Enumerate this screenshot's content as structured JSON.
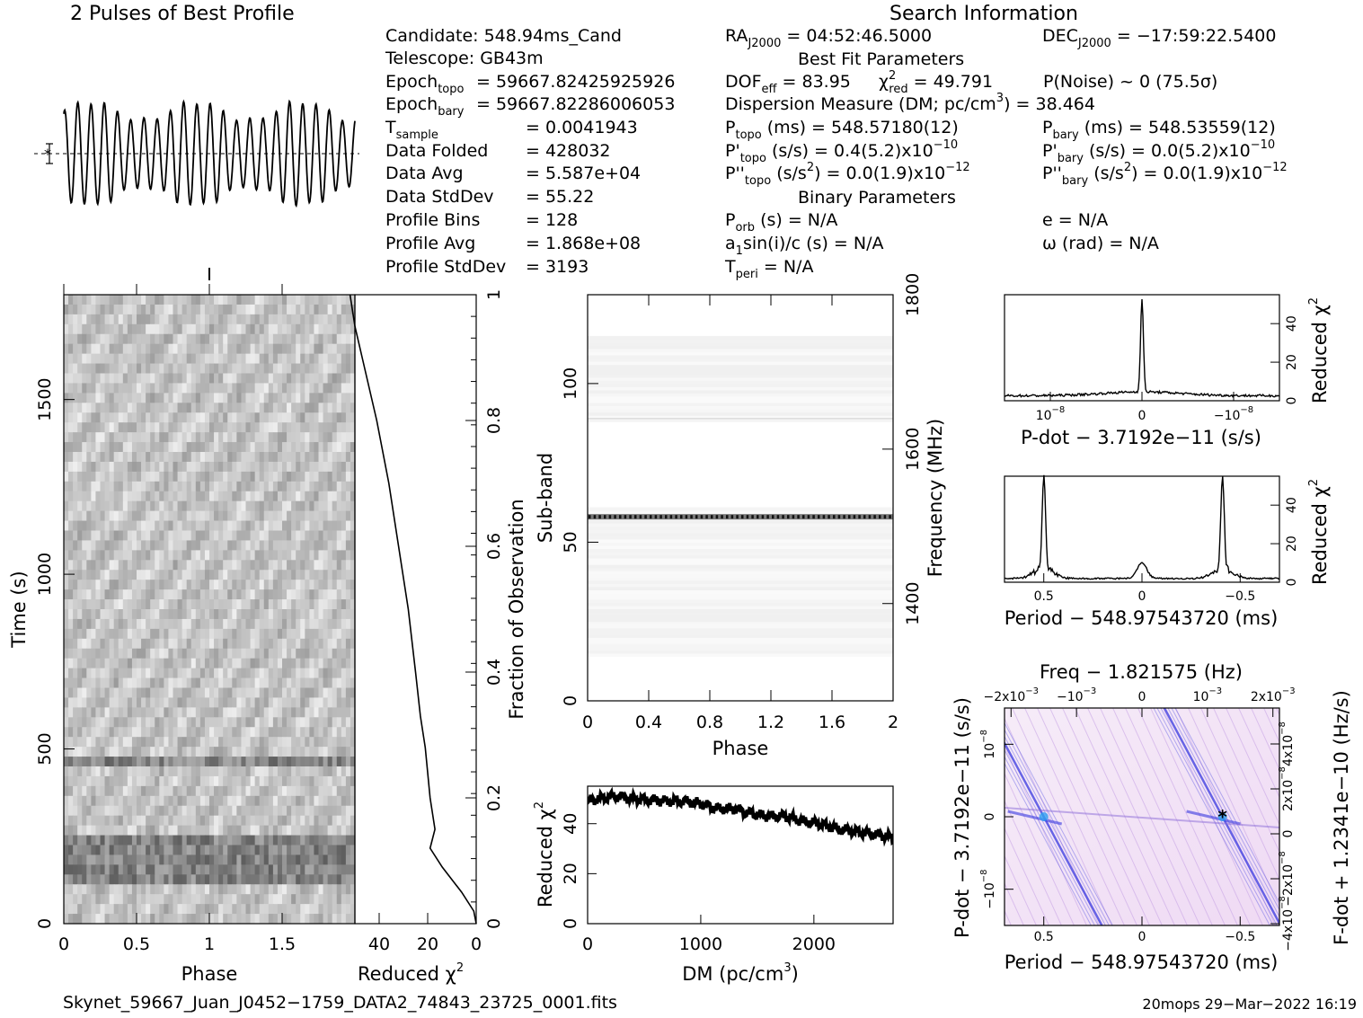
{
  "header": {
    "profile_title": "2 Pulses of Best Profile",
    "search_title": "Search Information",
    "best_fit_title": "Best Fit Parameters",
    "binary_title": "Binary Parameters"
  },
  "info": {
    "candidate": "Candidate:  548.94ms_Cand",
    "telescope": "Telescope:  GB43m",
    "epoch_topo_label": "Epoch",
    "epoch_topo_sub": "topo",
    "epoch_topo_val": "= 59667.82425925926",
    "epoch_bary_label": "Epoch",
    "epoch_bary_sub": "bary",
    "epoch_bary_val": "= 59667.82286006053",
    "tsample_label": "T",
    "tsample_sub": "sample",
    "tsample_val": "=   0.0041943",
    "data_folded_label": "Data Folded",
    "data_folded_val": "=   428032",
    "data_avg_label": "Data Avg",
    "data_avg_val": "=   5.587e+04",
    "data_std_label": "Data StdDev",
    "data_std_val": "=   55.22",
    "prof_bins_label": "Profile Bins",
    "prof_bins_val": "=   128",
    "prof_avg_label": "Profile Avg",
    "prof_avg_val": "=   1.868e+08",
    "prof_std_label": "Profile StdDev",
    "prof_std_val": "=   3193"
  },
  "search": {
    "ra_label": "RA",
    "ra_sub": "J2000",
    "ra_val": " = 04:52:46.5000",
    "dec_label": "DEC",
    "dec_sub": "J2000",
    "dec_val": " = −17:59:22.5400",
    "dof_label": "DOF",
    "dof_sub": "eff",
    "dof_val": " = 83.95",
    "chi_label": "χ",
    "chi_sup": "2",
    "chi_sub": "red",
    "chi_val": " = 49.791",
    "pnoise": "P(Noise) ~ 0    (75.5σ)",
    "dm_line": "Dispersion Measure (DM; pc/cm",
    "dm_sup": "3",
    "dm_val": ") = 38.464",
    "ptopo_label": "P",
    "ptopo_sub": "topo",
    "ptopo_val": " (ms) =  548.57180(12)",
    "pbary_label": "P",
    "pbary_sub": "bary",
    "pbary_val": " (ms) =  548.53559(12)",
    "pdtopo_label": "P'",
    "pdtopo_sub": "topo",
    "pdtopo_val": " (s/s) =  0.4(5.2)x10",
    "pdtopo_exp": "−10",
    "pdbary_label": "P'",
    "pdbary_sub": "bary",
    "pdbary_val": " (s/s) = 0.0(5.2)x10",
    "pdbary_exp": "−10",
    "pddtopo_label": "P''",
    "pddtopo_sub": "topo",
    "pddtopo_val": " (s/s",
    "pddtopo_sup": "2",
    "pddtopo_val2": ") = 0.0(1.9)x10",
    "pddtopo_exp": "−12",
    "pddbary_label": "P''",
    "pddbary_sub": "bary",
    "pddbary_val": " (s/s",
    "pddbary_sup": "2",
    "pddbary_val2": ") = 0.0(1.9)x10",
    "pddbary_exp": "−12",
    "porb_label": "P",
    "porb_sub": "orb",
    "porb_val": " (s) = N/A",
    "ecc": "e = N/A",
    "a1_label": "a",
    "a1_sub": "1",
    "a1_val": "sin(i)/c (s) = N/A",
    "omega": "ω (rad) = N/A",
    "tperi_label": "T",
    "tperi_sub": "peri",
    "tperi_val": " = N/A"
  },
  "footer": {
    "filename": "Skynet_59667_Juan_J0452−1759_DATA2_74843_23725_0001.fits",
    "stamp": "20mops 29−Mar−2022 16:19"
  },
  "colors": {
    "ink": "#000000",
    "pdot_map_bg": "#f3e3f7",
    "pdot_map_ridge": "#3838e0",
    "pdot_map_peak": "#30a0f0"
  },
  "chart_data": [
    {
      "id": "profile",
      "type": "line",
      "title": "2 Pulses of Best Profile",
      "x_range": [
        0,
        2
      ],
      "pulses_shown": 2,
      "oscillations_per_pulse": 11
    },
    {
      "id": "time_phase",
      "type": "heatmap",
      "xlabel": "Phase",
      "ylabel": "Time (s)",
      "xlim": [
        0,
        2
      ],
      "ylim": [
        0,
        1800
      ],
      "x_ticks": [
        "0",
        "0.5",
        "1",
        "1.5"
      ],
      "x_tick_values": [
        0,
        0.5,
        1,
        1.5
      ],
      "y_ticks": [
        "0",
        "500",
        "1000",
        "1500"
      ],
      "y_tick_values": [
        0,
        500,
        1000,
        1500
      ],
      "dark_band_times": [
        [
          100,
          260
        ],
        [
          460,
          490
        ]
      ]
    },
    {
      "id": "time_chi",
      "type": "line",
      "xlabel": "Reduced χ",
      "xlabel_sup": "2",
      "ylabel_right": "Fraction of Observation",
      "xlim": [
        50,
        0
      ],
      "ylim": [
        0,
        1
      ],
      "x_ticks": [
        "40",
        "20",
        "0"
      ],
      "x_tick_values": [
        40,
        20,
        0
      ],
      "y_ticks": [
        "0",
        "0.2",
        "0.4",
        "0.6",
        "0.8",
        "1"
      ],
      "y_tick_values": [
        0,
        0.2,
        0.4,
        0.6,
        0.8,
        1
      ],
      "fraction": [
        0,
        0.02,
        0.05,
        0.09,
        0.12,
        0.15,
        0.2,
        0.28,
        0.33,
        0.4,
        0.5,
        0.6,
        0.7,
        0.8,
        0.9,
        0.95,
        1.0
      ],
      "chi": [
        0,
        1,
        6,
        14,
        19,
        17,
        19,
        21,
        23,
        25,
        28,
        32,
        36,
        41,
        47,
        50,
        52
      ]
    },
    {
      "id": "subband_phase",
      "type": "heatmap",
      "xlabel": "Phase",
      "ylabel": "Sub-band",
      "ylabel_right": "Frequency (MHz)",
      "xlim": [
        0,
        2
      ],
      "ylim": [
        0,
        128
      ],
      "x_ticks": [
        "0",
        "0.4",
        "0.8",
        "1.2",
        "1.6",
        "2"
      ],
      "x_tick_values": [
        0,
        0.4,
        0.8,
        1.2,
        1.6,
        2
      ],
      "y_ticks": [
        "0",
        "50",
        "100"
      ],
      "y_tick_values": [
        0,
        50,
        100
      ],
      "freq_ticks": [
        "1400",
        "1600",
        "1800"
      ],
      "freq_tick_values": [
        1400,
        1600,
        1800
      ],
      "freq_range": [
        1274,
        1800
      ],
      "bright_subband": 58
    },
    {
      "id": "dm_chi",
      "type": "line",
      "xlabel": "DM (pc/cm",
      "xlabel_sup": "3",
      "ylabel": "Reduced χ",
      "ylabel_sup": "2",
      "xlim": [
        0,
        2700
      ],
      "ylim": [
        0,
        55
      ],
      "x_ticks": [
        "0",
        "1000",
        "2000"
      ],
      "x_tick_values": [
        0,
        1000,
        2000
      ],
      "y_ticks": [
        "0",
        "20",
        "40"
      ],
      "y_tick_values": [
        0,
        20,
        40
      ],
      "dm": [
        0,
        100,
        250,
        400,
        550,
        700,
        850,
        1000,
        1150,
        1300,
        1450,
        1600,
        1750,
        1900,
        2050,
        2200,
        2350,
        2500,
        2650,
        2700
      ],
      "chi": [
        49,
        50,
        51,
        50,
        49.5,
        49,
        49,
        48,
        46,
        46,
        44,
        43,
        43,
        41,
        40,
        38,
        37,
        36,
        35,
        34
      ]
    },
    {
      "id": "pdot_chi",
      "type": "line",
      "xlabel": "P-dot − 3.7192e−11 (s/s)",
      "ylabel_right": "Reduced χ",
      "ylabel_sup": "2",
      "xlim": [
        1.5e-08,
        -1.5e-08
      ],
      "ylim": [
        0,
        55
      ],
      "x_ticks": [
        "10",
        "0",
        "−10"
      ],
      "x_tick_exp": [
        "−8",
        "",
        "−8"
      ],
      "x_tick_values": [
        1e-08,
        0,
        -1e-08
      ],
      "y_ticks": [
        "0",
        "20",
        "40"
      ],
      "y_tick_values": [
        0,
        20,
        40
      ],
      "peak_x": 0,
      "peak_chi": 50
    },
    {
      "id": "period_chi",
      "type": "line",
      "xlabel": "Period − 548.97543720 (ms)",
      "ylabel_right": "Reduced χ",
      "ylabel_sup": "2",
      "xlim": [
        0.7,
        -0.7
      ],
      "ylim": [
        0,
        55
      ],
      "x_ticks": [
        "0.5",
        "0",
        "−0.5"
      ],
      "x_tick_values": [
        0.5,
        0,
        -0.5
      ],
      "y_ticks": [
        "0",
        "20",
        "40"
      ],
      "y_tick_values": [
        0,
        20,
        40
      ],
      "peaks": [
        {
          "x": 0.5,
          "chi": 50
        },
        {
          "x": 0,
          "chi": 10
        },
        {
          "x": -0.41,
          "chi": 50
        }
      ]
    },
    {
      "id": "p_pdot",
      "type": "heatmap",
      "title": "Freq − 1.821575 (Hz)",
      "xlabel": "Period − 548.97543720 (ms)",
      "ylabel": "P-dot − 3.7192e−11 (s/s)",
      "ylabel_right": "F-dot + 1.2341e−10 (Hz/s)",
      "xlim": [
        0.7,
        -0.7
      ],
      "ylim": [
        1.5e-08,
        -1.5e-08
      ],
      "x_ticks": [
        "0.5",
        "0",
        "−0.5"
      ],
      "x_tick_values": [
        0.5,
        0,
        -0.5
      ],
      "top_ticks": [
        "−2x10",
        "−10",
        "0",
        "10",
        "2x10"
      ],
      "top_tick_exp": [
        "−3",
        "−3",
        "",
        "−3",
        "−3"
      ],
      "top_tick_values": [
        -0.002,
        -0.001,
        0,
        0.001,
        0.002
      ],
      "y_ticks": [
        "−10",
        "0",
        "10"
      ],
      "y_tick_exp": [
        "−8",
        "",
        "−8"
      ],
      "y_tick_values": [
        -1e-08,
        0,
        1e-08
      ],
      "right_ticks": [
        "4x10",
        "2x10",
        "0",
        "−2x10",
        "−4x10"
      ],
      "right_tick_exp": [
        "−8",
        "−8",
        "",
        "−8",
        "−8"
      ],
      "best_point": {
        "period": -0.41,
        "pdot": 0
      }
    }
  ]
}
